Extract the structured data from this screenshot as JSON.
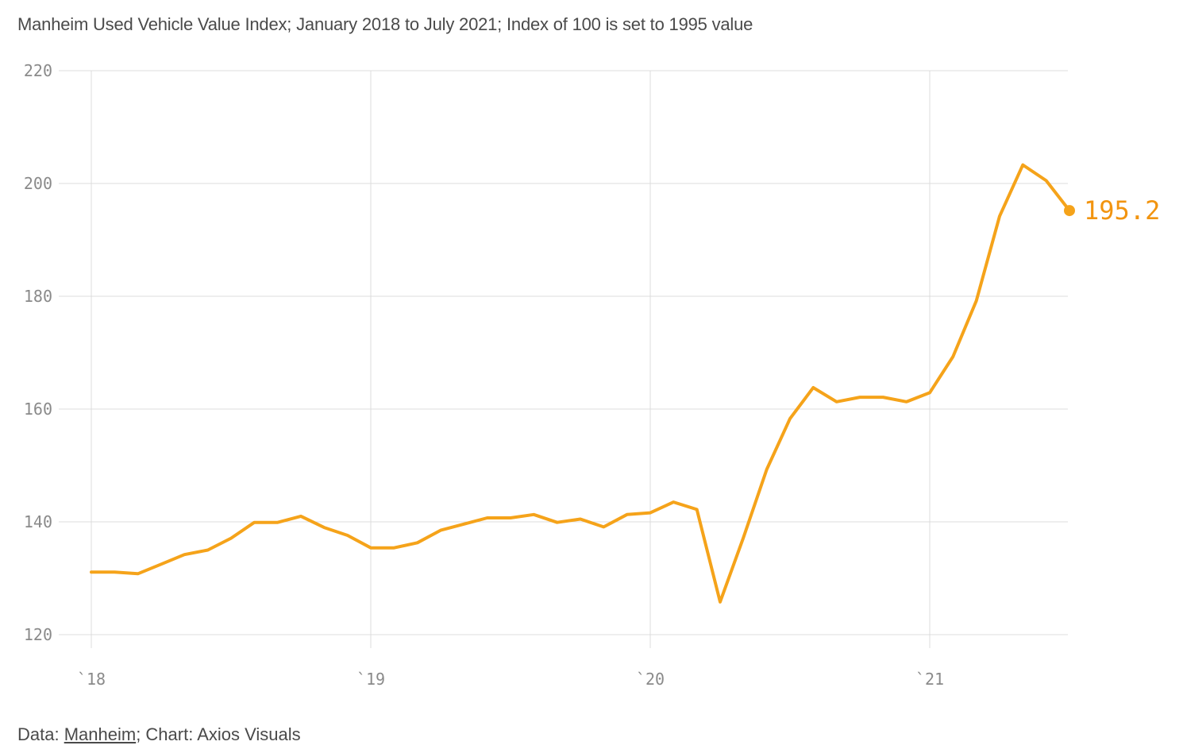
{
  "title": "Manheim Used Vehicle Value Index; January 2018 to July 2021; Index of 100 is set to 1995 value",
  "footer": {
    "data_prefix": "Data: ",
    "source_name": "Manheim",
    "suffix": "; Chart: Axios Visuals"
  },
  "colors": {
    "line": "#f5a31a",
    "end_label": "#f2940f",
    "grid": "#dcdcdc",
    "ticks": "#8a8a8a"
  },
  "chart_data": {
    "type": "line",
    "title": "Manheim Used Vehicle Value Index; January 2018 to July 2021; Index of 100 is set to 1995 value",
    "xlabel": "",
    "ylabel": "",
    "ylim": [
      120,
      220
    ],
    "yticks": [
      220,
      200,
      180,
      160,
      140,
      120
    ],
    "xticks": [
      {
        "date": "2018-01",
        "label": "`18"
      },
      {
        "date": "2019-01",
        "label": "`19"
      },
      {
        "date": "2020-01",
        "label": "`20"
      },
      {
        "date": "2021-01",
        "label": "`21"
      }
    ],
    "grid": true,
    "end_label": "195.2",
    "series": [
      {
        "x": [
          "2018-01",
          "2018-02",
          "2018-03",
          "2018-04",
          "2018-05",
          "2018-06",
          "2018-07",
          "2018-08",
          "2018-09",
          "2018-10",
          "2018-11",
          "2018-12",
          "2019-01",
          "2019-02",
          "2019-03",
          "2019-04",
          "2019-05",
          "2019-06",
          "2019-07",
          "2019-08",
          "2019-09",
          "2019-10",
          "2019-11",
          "2019-12",
          "2020-01",
          "2020-02",
          "2020-03",
          "2020-04",
          "2020-05",
          "2020-06",
          "2020-07",
          "2020-08",
          "2020-09",
          "2020-10",
          "2020-11",
          "2020-12",
          "2021-01",
          "2021-02",
          "2021-03",
          "2021-04",
          "2021-05",
          "2021-06",
          "2021-07"
        ],
        "values": [
          131.1,
          131.1,
          130.8,
          132.5,
          134.2,
          135.0,
          137.1,
          139.9,
          139.9,
          141.0,
          139.0,
          137.6,
          135.4,
          135.4,
          136.3,
          138.5,
          139.6,
          140.7,
          140.7,
          141.3,
          139.9,
          140.5,
          139.1,
          141.3,
          141.6,
          143.5,
          142.2,
          125.8,
          137.2,
          149.3,
          158.3,
          163.8,
          161.3,
          162.1,
          162.1,
          161.3,
          162.9,
          169.3,
          179.2,
          194.2,
          203.3,
          200.5,
          195.2
        ]
      }
    ]
  }
}
